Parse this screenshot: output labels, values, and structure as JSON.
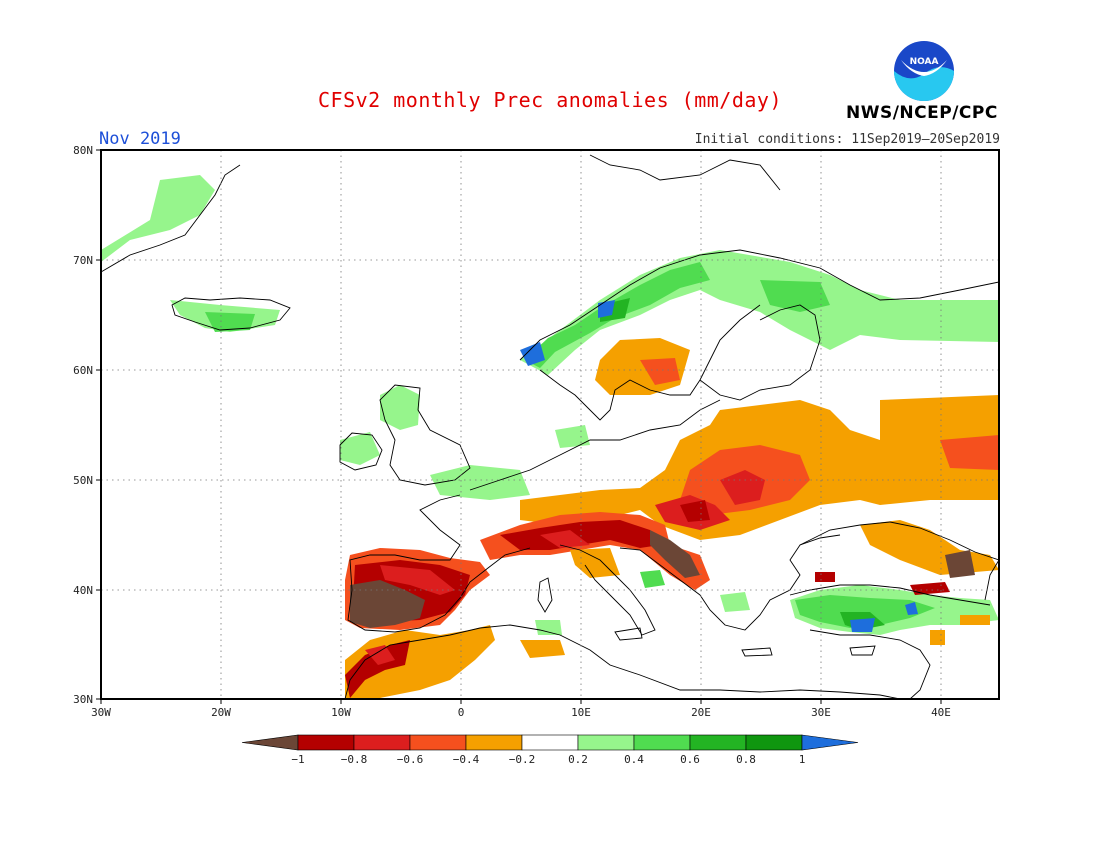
{
  "header": {
    "title": "CFSv2 monthly Prec anomalies (mm/day)",
    "period": "Nov 2019",
    "initial_conditions": "Initial conditions: 11Sep2019–20Sep2019",
    "agency": "NWS/NCEP/CPC",
    "logo_text": "NOAA"
  },
  "map": {
    "region": "Europe",
    "lon_range": [
      -30,
      45
    ],
    "lat_range": [
      30,
      80
    ],
    "lat_labels": [
      "30N",
      "40N",
      "50N",
      "60N",
      "70N",
      "80N"
    ],
    "lon_labels": [
      "30W",
      "20W",
      "10W",
      "0",
      "10E",
      "20E",
      "30E",
      "40E"
    ],
    "grid": true
  },
  "colorbar": {
    "labels": [
      "−1",
      "−0.8",
      "−0.6",
      "−0.4",
      "−0.2",
      "0.2",
      "0.4",
      "0.6",
      "0.8",
      "1"
    ],
    "colors": [
      "#6b4636",
      "#b40000",
      "#dc1e1e",
      "#f5501e",
      "#f5a000",
      "#ffffff",
      "#96f58c",
      "#50dc50",
      "#23b423",
      "#0f960f",
      "#1e6edc"
    ]
  },
  "anomaly_regions": [
    {
      "name": "Iberia",
      "level": -1
    },
    {
      "name": "Northern Italy / Adriatic",
      "level": -0.8
    },
    {
      "name": "Hungary / Romania",
      "level": -0.6
    },
    {
      "name": "Ukraine / Western Russia",
      "level": -0.4
    },
    {
      "name": "Southern Sweden",
      "level": -0.4
    },
    {
      "name": "Norway coast",
      "level": 0.6
    },
    {
      "name": "Northern Scandinavia",
      "level": 0.4
    },
    {
      "name": "Turkey / Eastern Mediterranean",
      "level": 0.6
    },
    {
      "name": "Greenland",
      "level": 0.4
    }
  ]
}
